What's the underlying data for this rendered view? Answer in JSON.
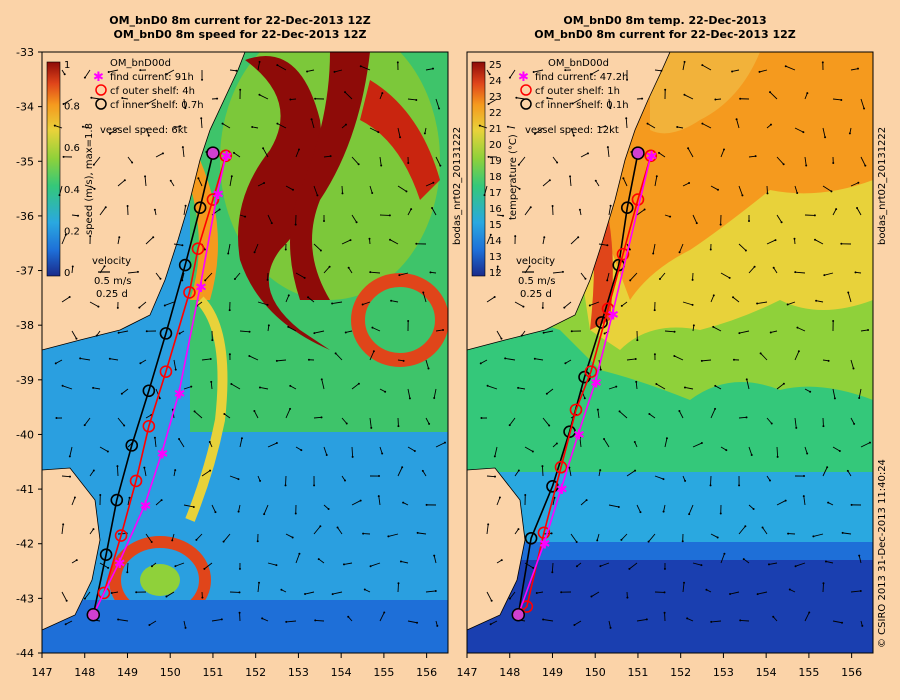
{
  "left_panel": {
    "title_line1": "OM_bnD0 8m current for 22-Dec-2013 12Z",
    "title_line2": "OM_bnD0 8m speed for 22-Dec-2013 12Z",
    "legend_header": "OM_bnD00d",
    "legend_items": [
      "find current: 91h",
      "cf outer shelf: 4h",
      "cf inner shelf: 0.7h"
    ],
    "vessel_speed": "vessel speed: 6kt",
    "colorbar_label": "speed (m/s), max=1.8",
    "colorbar_ticks": [
      "1",
      "0.8",
      "0.6",
      "0.4",
      "0.2",
      "0"
    ],
    "velocity_key": [
      "velocity",
      "0.5 m/s",
      "0.25 d"
    ],
    "colors": [
      "#1a2a8a",
      "#1e6fd8",
      "#2aa8e0",
      "#34c87a",
      "#8fd13a",
      "#e8d23a",
      "#f59a1e",
      "#e0451a",
      "#8e0b08"
    ]
  },
  "right_panel": {
    "title_line1": "OM_bnD0 8m temp. 22-Dec-2013",
    "title_line2": "OM_bnD0 8m current for 22-Dec-2013 12Z",
    "legend_header": "OM_bnD00d",
    "legend_items": [
      "find current: 47.2h",
      "cf outer shelf: 1h",
      "cf inner shelf: 0.1h"
    ],
    "vessel_speed": "vessel speed: 12kt",
    "colorbar_label": "temperature (°C)",
    "colorbar_ticks": [
      "25",
      "24",
      "23",
      "22",
      "21",
      "20",
      "19",
      "18",
      "17",
      "16",
      "15",
      "14",
      "13",
      "12"
    ],
    "velocity_key": [
      "velocity",
      "0.5 m/s",
      "0.25 d"
    ],
    "colors": [
      "#1a2a8a",
      "#1e6fd8",
      "#2aa8e0",
      "#34c87a",
      "#8fd13a",
      "#e8d23a",
      "#f59a1e",
      "#e0451a",
      "#8e0b08"
    ]
  },
  "axes": {
    "lat_ticks": [
      "-33",
      "-34",
      "-35",
      "-36",
      "-37",
      "-38",
      "-39",
      "-40",
      "-41",
      "-42",
      "-43",
      "-44"
    ],
    "lon_ticks": [
      "147",
      "148",
      "149",
      "150",
      "151",
      "152",
      "153",
      "154",
      "155",
      "156"
    ]
  },
  "side_text": {
    "source_tag": "bodas_nrt02_20131222",
    "footer": "© CSIRO 2013   31-Dec-2013 11:40:24"
  },
  "route_colors": {
    "find": "#ff00ff",
    "outer": "#ff0000",
    "inner": "#000000"
  },
  "chart_data": {
    "type": "map",
    "lon_range": [
      147,
      156.5
    ],
    "lat_range": [
      -44,
      -33
    ],
    "routes_left": {
      "inner": [
        [
          148.2,
          -43.3
        ],
        [
          148.5,
          -42.2
        ],
        [
          148.75,
          -41.2
        ],
        [
          149.1,
          -40.2
        ],
        [
          149.5,
          -39.2
        ],
        [
          149.9,
          -38.15
        ],
        [
          150.35,
          -36.9
        ],
        [
          150.7,
          -35.85
        ],
        [
          151.0,
          -34.85
        ]
      ],
      "outer": [
        [
          148.2,
          -43.3
        ],
        [
          148.45,
          -42.9
        ],
        [
          148.85,
          -41.85
        ],
        [
          149.2,
          -40.85
        ],
        [
          149.5,
          -39.85
        ],
        [
          149.9,
          -38.85
        ],
        [
          150.45,
          -37.4
        ],
        [
          150.65,
          -36.6
        ],
        [
          151.0,
          -35.7
        ],
        [
          151.3,
          -34.9
        ]
      ],
      "find": [
        [
          148.2,
          -43.3
        ],
        [
          148.8,
          -42.35
        ],
        [
          149.4,
          -41.3
        ],
        [
          149.8,
          -40.35
        ],
        [
          150.2,
          -39.25
        ],
        [
          150.7,
          -37.3
        ],
        [
          151.1,
          -35.6
        ],
        [
          151.3,
          -34.9
        ]
      ]
    },
    "routes_right": {
      "inner": [
        [
          148.2,
          -43.3
        ],
        [
          148.5,
          -41.9
        ],
        [
          149.0,
          -40.95
        ],
        [
          149.4,
          -39.95
        ],
        [
          149.75,
          -38.95
        ],
        [
          150.15,
          -37.95
        ],
        [
          150.55,
          -36.9
        ],
        [
          150.75,
          -35.85
        ],
        [
          151.0,
          -34.85
        ]
      ],
      "outer": [
        [
          148.2,
          -43.3
        ],
        [
          148.4,
          -43.15
        ],
        [
          148.8,
          -41.8
        ],
        [
          149.2,
          -40.6
        ],
        [
          149.55,
          -39.55
        ],
        [
          149.9,
          -38.85
        ],
        [
          150.3,
          -37.7
        ],
        [
          150.65,
          -36.7
        ],
        [
          151.0,
          -35.7
        ],
        [
          151.3,
          -34.9
        ]
      ],
      "find": [
        [
          148.2,
          -43.3
        ],
        [
          148.8,
          -42.0
        ],
        [
          149.2,
          -41.0
        ],
        [
          149.6,
          -40.0
        ],
        [
          150.0,
          -39.05
        ],
        [
          150.4,
          -37.8
        ],
        [
          151.3,
          -34.9
        ]
      ]
    }
  }
}
